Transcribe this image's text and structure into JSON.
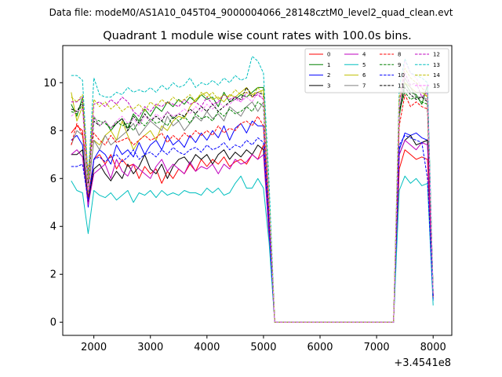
{
  "chart_data": {
    "type": "line",
    "suptitle": "Data file: modeM0/AS1A10_045T04_9000004066_28148cztM0_level2_quad_clean.evt",
    "title": "Quadrant 1 module wise count rates with 100.0s bins.",
    "xlabel": "",
    "ylabel": "",
    "x_offset_label": "+3.4541e8",
    "xlim": [
      1450,
      8330
    ],
    "ylim": [
      -0.55,
      11.55
    ],
    "xticks": [
      2000,
      3000,
      4000,
      5000,
      6000,
      7000,
      8000
    ],
    "yticks": [
      0,
      2,
      4,
      6,
      8,
      10
    ],
    "legend_location": "top-right",
    "x": [
      1600,
      1700,
      1800,
      1900,
      2000,
      2100,
      2200,
      2300,
      2400,
      2500,
      2600,
      2700,
      2800,
      2900,
      3000,
      3100,
      3200,
      3300,
      3400,
      3500,
      3600,
      3700,
      3800,
      3900,
      4000,
      4100,
      4200,
      4300,
      4400,
      4500,
      4600,
      4700,
      4800,
      4900,
      5000,
      5100,
      5200,
      5300,
      5400,
      5500,
      5600,
      5700,
      5800,
      5900,
      6000,
      6100,
      6200,
      6300,
      6400,
      6500,
      6600,
      6700,
      6800,
      6900,
      7000,
      7100,
      7200,
      7300,
      7400,
      7500,
      7600,
      7700,
      7800,
      7900,
      8000
    ],
    "series": [
      {
        "name": "0",
        "color": "#ff0000",
        "dash": "solid",
        "values": [
          7.9,
          8.2,
          8.0,
          5.2,
          6.8,
          7.0,
          6.6,
          7.0,
          6.4,
          6.8,
          6.5,
          6.6,
          6.0,
          6.5,
          6.2,
          6.4,
          5.8,
          6.3,
          6.0,
          6.4,
          6.2,
          6.6,
          6.3,
          6.8,
          6.5,
          6.8,
          6.6,
          6.9,
          6.5,
          6.7,
          6.8,
          6.6,
          7.0,
          6.8,
          7.4,
          3.5,
          0,
          0,
          0,
          0,
          0,
          0,
          0,
          0,
          0,
          0,
          0,
          0,
          0,
          0,
          0,
          0,
          0,
          0,
          0,
          0,
          0,
          0,
          6.4,
          7.2,
          7.0,
          6.8,
          6.9,
          6.8,
          1.1
        ]
      },
      {
        "name": "1",
        "color": "#008000",
        "dash": "solid",
        "values": [
          9.1,
          8.6,
          9.4,
          5.6,
          8.6,
          8.2,
          8.4,
          8.0,
          8.3,
          8.5,
          8.1,
          8.7,
          8.4,
          8.9,
          8.6,
          9.0,
          8.8,
          9.2,
          9.0,
          9.3,
          9.1,
          9.4,
          9.2,
          9.5,
          9.3,
          9.4,
          9.0,
          9.6,
          9.2,
          9.3,
          9.5,
          9.4,
          9.6,
          9.8,
          9.8,
          5.0,
          0,
          0,
          0,
          0,
          0,
          0,
          0,
          0,
          0,
          0,
          0,
          0,
          0,
          0,
          0,
          0,
          0,
          0,
          0,
          0,
          0,
          0,
          8.6,
          10.0,
          9.6,
          9.5,
          9.1,
          9.9,
          1.2
        ]
      },
      {
        "name": "2",
        "color": "#0000ff",
        "dash": "solid",
        "values": [
          7.6,
          7.8,
          7.4,
          4.8,
          6.8,
          7.2,
          7.0,
          6.6,
          7.4,
          7.0,
          7.2,
          6.9,
          7.5,
          7.0,
          7.4,
          7.6,
          7.2,
          7.8,
          7.4,
          7.6,
          7.3,
          7.8,
          7.5,
          7.9,
          7.6,
          8.0,
          7.7,
          8.2,
          7.6,
          8.1,
          8.3,
          7.9,
          8.4,
          8.2,
          8.2,
          4.2,
          0,
          0,
          0,
          0,
          0,
          0,
          0,
          0,
          0,
          0,
          0,
          0,
          0,
          0,
          0,
          0,
          0,
          0,
          0,
          0,
          0,
          0,
          7.2,
          7.9,
          7.8,
          7.9,
          7.7,
          7.6,
          0.9
        ]
      },
      {
        "name": "3",
        "color": "#000000",
        "dash": "solid",
        "values": [
          7.0,
          7.0,
          7.2,
          5.0,
          6.4,
          6.6,
          6.2,
          5.9,
          6.3,
          6.0,
          6.6,
          6.2,
          6.5,
          7.0,
          6.4,
          6.2,
          6.6,
          6.0,
          6.5,
          6.8,
          6.9,
          6.6,
          7.0,
          6.8,
          7.0,
          6.6,
          7.0,
          7.2,
          6.8,
          7.1,
          6.9,
          7.2,
          7.0,
          7.4,
          7.2,
          3.7,
          0,
          0,
          0,
          0,
          0,
          0,
          0,
          0,
          0,
          0,
          0,
          0,
          0,
          0,
          0,
          0,
          0,
          0,
          0,
          0,
          0,
          0,
          7.0,
          7.6,
          7.8,
          7.4,
          7.5,
          7.6,
          1.1
        ]
      },
      {
        "name": "4",
        "color": "#bf00bf",
        "dash": "solid",
        "values": [
          7.0,
          7.2,
          6.9,
          4.9,
          6.2,
          6.4,
          6.6,
          6.0,
          6.8,
          6.3,
          6.1,
          6.6,
          6.4,
          6.2,
          6.0,
          6.5,
          6.8,
          6.3,
          6.6,
          6.4,
          6.2,
          6.7,
          6.3,
          6.5,
          6.4,
          6.6,
          6.2,
          6.6,
          6.4,
          6.8,
          6.6,
          6.7,
          7.0,
          6.8,
          7.0,
          3.6,
          0,
          0,
          0,
          0,
          0,
          0,
          0,
          0,
          0,
          0,
          0,
          0,
          0,
          0,
          0,
          0,
          0,
          0,
          0,
          0,
          0,
          0,
          7.0,
          7.6,
          7.4,
          7.2,
          7.5,
          7.4,
          1.1
        ]
      },
      {
        "name": "5",
        "color": "#00bfbf",
        "dash": "solid",
        "values": [
          5.9,
          5.5,
          5.4,
          3.7,
          5.5,
          5.3,
          5.2,
          5.4,
          5.1,
          5.3,
          5.5,
          5.0,
          5.4,
          5.3,
          5.5,
          5.2,
          5.5,
          5.3,
          5.4,
          5.3,
          5.5,
          5.4,
          5.4,
          5.3,
          5.6,
          5.4,
          5.6,
          5.3,
          5.4,
          5.8,
          6.1,
          5.6,
          5.6,
          6.0,
          5.6,
          3.3,
          0,
          0,
          0,
          0,
          0,
          0,
          0,
          0,
          0,
          0,
          0,
          0,
          0,
          0,
          0,
          0,
          0,
          0,
          0,
          0,
          0,
          0,
          5.5,
          6.1,
          5.8,
          6.0,
          5.7,
          5.8,
          0.7
        ]
      },
      {
        "name": "6",
        "color": "#bfbf00",
        "dash": "solid",
        "values": [
          9.6,
          8.4,
          9.0,
          5.6,
          7.6,
          7.4,
          7.8,
          8.0,
          7.6,
          8.4,
          7.8,
          7.2,
          7.6,
          7.8,
          8.0,
          7.6,
          8.2,
          8.0,
          8.4,
          8.6,
          8.5,
          9.0,
          9.3,
          9.5,
          9.6,
          9.3,
          9.4,
          9.2,
          9.5,
          9.4,
          9.6,
          9.8,
          9.5,
          9.6,
          9.7,
          5.0,
          0,
          0,
          0,
          0,
          0,
          0,
          0,
          0,
          0,
          0,
          0,
          0,
          0,
          0,
          0,
          0,
          0,
          0,
          0,
          0,
          0,
          0,
          9.2,
          10.0,
          9.8,
          9.6,
          9.6,
          9.4,
          1.2
        ]
      },
      {
        "name": "7",
        "color": "#808080",
        "dash": "solid",
        "values": [
          7.4,
          8.0,
          7.8,
          5.4,
          7.6,
          7.2,
          7.8,
          7.4,
          7.6,
          7.8,
          8.0,
          8.3,
          7.8,
          8.1,
          8.4,
          8.2,
          8.0,
          8.6,
          8.2,
          8.4,
          8.0,
          8.3,
          8.6,
          8.4,
          8.8,
          8.5,
          8.7,
          8.4,
          9.0,
          8.8,
          8.6,
          9.0,
          9.2,
          8.8,
          9.2,
          4.8,
          0,
          0,
          0,
          0,
          0,
          0,
          0,
          0,
          0,
          0,
          0,
          0,
          0,
          0,
          0,
          0,
          0,
          0,
          0,
          0,
          0,
          0,
          8.8,
          10.2,
          9.8,
          9.4,
          9.4,
          9.3,
          1.2
        ]
      },
      {
        "name": "8",
        "color": "#ff0000",
        "dash": "dashed",
        "values": [
          7.4,
          8.3,
          7.8,
          6.4,
          7.9,
          7.6,
          7.4,
          7.8,
          7.5,
          7.6,
          7.7,
          7.4,
          7.6,
          7.8,
          7.6,
          7.7,
          7.9,
          7.5,
          7.8,
          7.6,
          7.9,
          7.7,
          8.0,
          7.8,
          8.0,
          7.8,
          8.2,
          7.9,
          8.1,
          8.0,
          8.3,
          8.4,
          8.2,
          8.6,
          8.2,
          4.4,
          0,
          0,
          0,
          0,
          0,
          0,
          0,
          0,
          0,
          0,
          0,
          0,
          0,
          0,
          0,
          0,
          0,
          0,
          0,
          0,
          0,
          0,
          8.2,
          9.5,
          9.0,
          9.2,
          9.0,
          8.9,
          1.0
        ]
      },
      {
        "name": "9",
        "color": "#008000",
        "dash": "dashed",
        "values": [
          8.8,
          8.7,
          9.1,
          6.0,
          8.5,
          8.4,
          8.3,
          8.1,
          8.4,
          8.2,
          8.3,
          8.0,
          8.4,
          8.2,
          8.5,
          8.3,
          8.4,
          8.2,
          8.6,
          8.4,
          8.6,
          8.3,
          8.7,
          8.5,
          8.6,
          8.4,
          8.8,
          8.6,
          8.9,
          8.7,
          8.8,
          9.0,
          8.8,
          9.2,
          9.0,
          4.8,
          0,
          0,
          0,
          0,
          0,
          0,
          0,
          0,
          0,
          0,
          0,
          0,
          0,
          0,
          0,
          0,
          0,
          0,
          0,
          0,
          0,
          0,
          8.8,
          9.6,
          9.3,
          9.4,
          9.2,
          9.1,
          1.2
        ]
      },
      {
        "name": "10",
        "color": "#0000ff",
        "dash": "dashed",
        "values": [
          6.5,
          6.5,
          6.6,
          5.1,
          6.8,
          6.9,
          6.7,
          6.9,
          7.0,
          6.7,
          6.9,
          7.2,
          6.8,
          7.0,
          7.1,
          6.9,
          7.2,
          7.0,
          7.3,
          7.1,
          7.0,
          7.2,
          7.3,
          7.1,
          7.4,
          7.2,
          7.3,
          7.5,
          7.2,
          7.4,
          7.3,
          7.6,
          7.4,
          7.7,
          7.5,
          4.0,
          0,
          0,
          0,
          0,
          0,
          0,
          0,
          0,
          0,
          0,
          0,
          0,
          0,
          0,
          0,
          0,
          0,
          0,
          0,
          0,
          0,
          0,
          7.4,
          7.8,
          7.7,
          7.6,
          7.5,
          6.0,
          1.0
        ]
      },
      {
        "name": "11",
        "color": "#000000",
        "dash": "dashed",
        "values": [
          8.9,
          8.8,
          9.2,
          5.8,
          8.4,
          8.2,
          8.4,
          8.1,
          8.3,
          8.5,
          8.0,
          8.6,
          8.3,
          8.7,
          8.4,
          8.6,
          8.4,
          8.8,
          8.5,
          8.7,
          8.6,
          8.9,
          8.7,
          9.0,
          8.8,
          9.1,
          8.8,
          9.0,
          9.2,
          9.4,
          9.3,
          9.8,
          9.4,
          9.6,
          9.5,
          4.9,
          0,
          0,
          0,
          0,
          0,
          0,
          0,
          0,
          0,
          0,
          0,
          0,
          0,
          0,
          0,
          0,
          0,
          0,
          0,
          0,
          0,
          0,
          8.8,
          9.8,
          9.5,
          9.3,
          9.4,
          9.2,
          1.2
        ]
      },
      {
        "name": "12",
        "color": "#bf00bf",
        "dash": "dashed",
        "values": [
          9.2,
          9.2,
          9.4,
          6.0,
          9.1,
          9.2,
          9.0,
          9.3,
          9.1,
          9.4,
          9.2,
          8.8,
          8.6,
          9.0,
          8.8,
          9.1,
          9.0,
          9.2,
          9.1,
          9.0,
          9.3,
          9.1,
          9.2,
          9.0,
          9.4,
          9.1,
          9.2,
          9.5,
          9.3,
          9.4,
          9.2,
          9.6,
          9.4,
          9.5,
          9.3,
          5.0,
          0,
          0,
          0,
          0,
          0,
          0,
          0,
          0,
          0,
          0,
          0,
          0,
          0,
          0,
          0,
          0,
          0,
          0,
          0,
          0,
          0,
          0,
          9.2,
          10.4,
          9.9,
          10.0,
          9.4,
          9.6,
          1.2
        ]
      },
      {
        "name": "13",
        "color": "#00bfbf",
        "dash": "dashed",
        "values": [
          10.3,
          10.3,
          10.1,
          6.0,
          10.2,
          9.5,
          9.4,
          9.4,
          9.6,
          9.5,
          9.8,
          9.6,
          9.7,
          9.6,
          9.8,
          9.6,
          9.9,
          9.7,
          10.0,
          9.8,
          9.9,
          10.2,
          9.8,
          10.0,
          9.9,
          10.1,
          9.9,
          10.2,
          10.0,
          10.3,
          10.1,
          10.2,
          11.1,
          10.9,
          10.4,
          5.8,
          0,
          0,
          0,
          0,
          0,
          0,
          0,
          0,
          0,
          0,
          0,
          0,
          0,
          0,
          0,
          0,
          0,
          0,
          0,
          0,
          0,
          0,
          9.8,
          11.0,
          10.4,
          10.3,
          10.2,
          10.0,
          1.3
        ]
      },
      {
        "name": "14",
        "color": "#bfbf00",
        "dash": "dashed",
        "values": [
          9.4,
          9.2,
          9.5,
          6.0,
          9.3,
          9.0,
          9.2,
          8.9,
          9.1,
          8.8,
          9.0,
          8.9,
          9.1,
          8.8,
          9.2,
          9.0,
          9.3,
          9.1,
          9.4,
          9.2,
          9.3,
          9.5,
          9.2,
          9.6,
          9.4,
          9.6,
          9.3,
          9.5,
          9.4,
          9.7,
          9.5,
          9.6,
          9.4,
          9.8,
          9.5,
          5.1,
          0,
          0,
          0,
          0,
          0,
          0,
          0,
          0,
          0,
          0,
          0,
          0,
          0,
          0,
          0,
          0,
          0,
          0,
          0,
          0,
          0,
          0,
          9.4,
          10.6,
          10.2,
          10.0,
          9.8,
          9.4,
          1.3
        ]
      },
      {
        "name": "15",
        "color": "#ff80ff",
        "dash": "dashed",
        "values": [
          8.6,
          8.8,
          8.9,
          5.5,
          8.6,
          8.2,
          8.4,
          8.1,
          8.4,
          8.6,
          8.3,
          8.5,
          8.2,
          8.6,
          8.4,
          8.7,
          8.5,
          8.8,
          8.6,
          8.7,
          8.9,
          8.7,
          9.0,
          8.8,
          9.1,
          8.9,
          9.2,
          9.0,
          9.1,
          9.3,
          9.2,
          9.4,
          9.2,
          9.6,
          9.3,
          4.9,
          0,
          0,
          0,
          0,
          0,
          0,
          0,
          0,
          0,
          0,
          0,
          0,
          0,
          0,
          0,
          0,
          0,
          0,
          0,
          0,
          0,
          0,
          9.0,
          10.9,
          10.4,
          10.2,
          9.8,
          9.6,
          1.2
        ]
      }
    ]
  }
}
